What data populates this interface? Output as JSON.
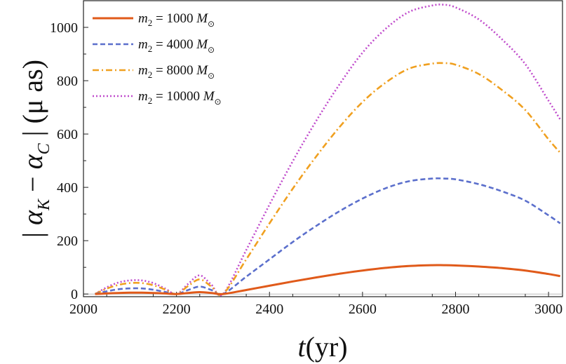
{
  "chart_data": {
    "type": "line",
    "title": "",
    "xlabel": "t(yr)",
    "ylabel": "|α_K − α_C| (μ as)",
    "xlim": [
      2000,
      3030
    ],
    "ylim": [
      -10,
      1100
    ],
    "xticks": [
      2000,
      2200,
      2400,
      2600,
      2800,
      3000
    ],
    "yticks": [
      0,
      200,
      400,
      600,
      800,
      1000
    ],
    "legend_position": "top-left",
    "x": [
      2025,
      2050,
      2075,
      2100,
      2125,
      2150,
      2175,
      2200,
      2225,
      2250,
      2275,
      2300,
      2350,
      2400,
      2450,
      2500,
      2550,
      2600,
      2650,
      2700,
      2750,
      2775,
      2800,
      2850,
      2900,
      2950,
      3000,
      3025
    ],
    "series": [
      {
        "name": "m2 = 1000 M⊙",
        "label_main": "m",
        "label_sub": "2",
        "label_value": " = 1000 ",
        "label_unit": "M",
        "label_unit_sub": "⊙",
        "color": "#e05a1a",
        "dash": "solid",
        "values": [
          0,
          2,
          4,
          5,
          5,
          4,
          2,
          0,
          4,
          7,
          4,
          0,
          15,
          31,
          47,
          62,
          76,
          88,
          98,
          105,
          108,
          108,
          107,
          103,
          97,
          88,
          75,
          67
        ]
      },
      {
        "name": "m2 = 4000 M⊙",
        "label_main": "m",
        "label_sub": "2",
        "label_value": " = 4000 ",
        "label_unit": "M",
        "label_unit_sub": "⊙",
        "color": "#5b6fcc",
        "dash": "dashed",
        "values": [
          0,
          10,
          18,
          21,
          21,
          16,
          8,
          0,
          15,
          28,
          15,
          0,
          65,
          130,
          195,
          255,
          310,
          358,
          397,
          423,
          433,
          433,
          430,
          412,
          385,
          350,
          295,
          265
        ]
      },
      {
        "name": "m2 = 8000 M⊙",
        "label_main": "m",
        "label_sub": "2",
        "label_value": " = 8000 ",
        "label_unit": "M",
        "label_unit_sub": "⊙",
        "color": "#f0a020",
        "dash": "dashdot",
        "values": [
          0,
          20,
          34,
          41,
          41,
          33,
          17,
          0,
          30,
          55,
          28,
          0,
          130,
          265,
          395,
          515,
          625,
          720,
          793,
          845,
          864,
          866,
          860,
          825,
          765,
          690,
          580,
          530
        ]
      },
      {
        "name": "m2 = 10000 M⊙",
        "label_main": "m",
        "label_sub": "2",
        "label_value": " = 10000 ",
        "label_unit": "M",
        "label_unit_sub": "⊙",
        "color": "#c04ccc",
        "dash": "dotted",
        "values": [
          0,
          25,
          43,
          51,
          51,
          41,
          21,
          0,
          38,
          70,
          35,
          0,
          165,
          335,
          498,
          648,
          785,
          905,
          995,
          1058,
          1082,
          1085,
          1075,
          1030,
          955,
          862,
          725,
          655
        ]
      }
    ]
  }
}
